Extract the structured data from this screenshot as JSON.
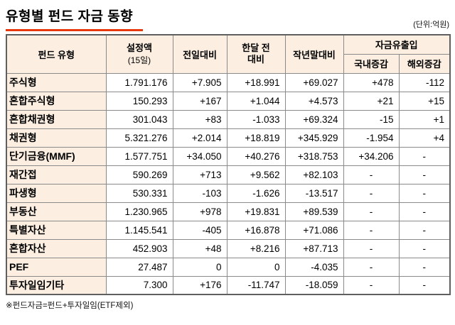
{
  "colors": {
    "header_bg": "#fcefe1",
    "accent_red": "#e8380d",
    "border_inner": "#8a8a8a",
    "border_outer": "#5f5f5f"
  },
  "chart_data": {
    "type": "table",
    "title": "유형별 펀드 자금 동향",
    "unit_label": "(단위:억원)",
    "footnote": "※펀드자금=펀드+투자일임(ETF제외)",
    "headers": {
      "fund_type": "펀드 유형",
      "set_amount_line1": "설정액",
      "set_amount_line2": "(15일)",
      "vs_prev_day": "전일대비",
      "vs_month_line1": "한달 전",
      "vs_month_line2": "대비",
      "vs_year_end": "작년말대비",
      "flow_group": "자금유출입",
      "domestic": "국내증감",
      "overseas": "해외증감"
    },
    "columns": [
      "펀드 유형",
      "설정액(15일)",
      "전일대비",
      "한달 전 대비",
      "작년말대비",
      "자금유출입-국내증감",
      "자금유출입-해외증감"
    ],
    "rows": [
      {
        "type": "주식형",
        "amount": "1.791.176",
        "d1": "+7.905",
        "m1": "+18.991",
        "ytd": "+69.027",
        "dom": "+478",
        "ovs": "-112"
      },
      {
        "type": "혼합주식형",
        "amount": "150.293",
        "d1": "+167",
        "m1": "+1.044",
        "ytd": "+4.573",
        "dom": "+21",
        "ovs": "+15"
      },
      {
        "type": "혼합채권형",
        "amount": "301.043",
        "d1": "+83",
        "m1": "-1.033",
        "ytd": "+69.324",
        "dom": "-15",
        "ovs": "+1"
      },
      {
        "type": "채권형",
        "amount": "5.321.276",
        "d1": "+2.014",
        "m1": "+18.819",
        "ytd": "+345.929",
        "dom": "-1.954",
        "ovs": "+4"
      },
      {
        "type": "단기금융(MMF)",
        "amount": "1.577.751",
        "d1": "+34.050",
        "m1": "+40.276",
        "ytd": "+318.753",
        "dom": "+34.206",
        "ovs": "-"
      },
      {
        "type": "재간접",
        "amount": "590.269",
        "d1": "+713",
        "m1": "+9.562",
        "ytd": "+82.103",
        "dom": "-",
        "ovs": "-"
      },
      {
        "type": "파생형",
        "amount": "530.331",
        "d1": "-103",
        "m1": "-1.626",
        "ytd": "-13.517",
        "dom": "-",
        "ovs": "-"
      },
      {
        "type": "부동산",
        "amount": "1.230.965",
        "d1": "+978",
        "m1": "+19.831",
        "ytd": "+89.539",
        "dom": "-",
        "ovs": "-"
      },
      {
        "type": "특별자산",
        "amount": "1.145.541",
        "d1": "-405",
        "m1": "+16.878",
        "ytd": "+71.086",
        "dom": "-",
        "ovs": "-"
      },
      {
        "type": "혼합자산",
        "amount": "452.903",
        "d1": "+48",
        "m1": "+8.216",
        "ytd": "+87.713",
        "dom": "-",
        "ovs": "-"
      },
      {
        "type": "PEF",
        "amount": "27.487",
        "d1": "0",
        "m1": "0",
        "ytd": "-4.035",
        "dom": "-",
        "ovs": "-"
      },
      {
        "type": "투자일임기타",
        "amount": "7.300",
        "d1": "+176",
        "m1": "-11.747",
        "ytd": "-18.059",
        "dom": "-",
        "ovs": "-"
      }
    ]
  }
}
